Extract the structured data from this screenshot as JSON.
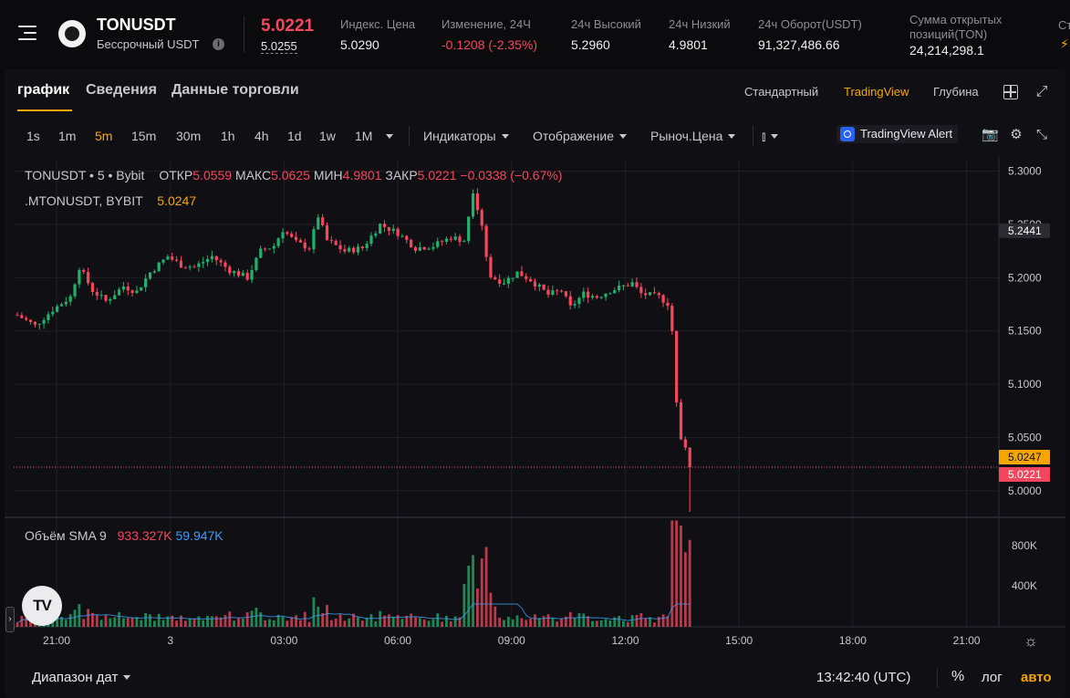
{
  "header": {
    "symbol": "TONUSDT",
    "subtitle": "Бессрочный USDT",
    "last_price": "5.0221",
    "mark_price": "5.0255",
    "stats": [
      {
        "label": "Индекс. Цена",
        "value": "5.0290",
        "negative": false
      },
      {
        "label": "Изменение, 24Ч",
        "value": "-0.1208 (-2.35%)",
        "negative": true
      },
      {
        "label": "24ч Высокий",
        "value": "5.2960",
        "negative": false
      },
      {
        "label": "24ч Низкий",
        "value": "4.9801",
        "negative": false
      },
      {
        "label": "24ч Оборот(USDT)",
        "value": "91,327,486.66",
        "negative": false
      }
    ],
    "open_interest_label_1": "Сумма открытых",
    "open_interest_label_2": "позиций(TON)",
    "open_interest_value": "24,214,298.1",
    "truncated_label": "Ст"
  },
  "tabs": [
    "график",
    "Сведения",
    "Данные торговли"
  ],
  "views": [
    "Стандартный",
    "TradingView",
    "Глубина"
  ],
  "timeframes": [
    "1s",
    "1m",
    "5m",
    "15m",
    "30m",
    "1h",
    "4h",
    "1d",
    "1w",
    "1M"
  ],
  "active_timeframe": "5m",
  "toolbar": {
    "indicators": "Индикаторы",
    "display": "Отображение",
    "price_type": "Рыноч.Цена",
    "alert": "TradingView Alert"
  },
  "legend": {
    "symbol": "TONUSDT • 5 • Bybit",
    "open_lbl": "ОТКР",
    "open": "5.0559",
    "high_lbl": "МАКС",
    "high": "5.0625",
    "low_lbl": "МИН",
    "low": "4.9801",
    "close_lbl": "ЗАКР",
    "close": "5.0221",
    "change": "−0.0338 (−0.67%)",
    "mark_symbol": ".MTONUSDT, BYBIT",
    "mark_value": "5.0247",
    "volume_lbl": "Объём SMA 9",
    "volume_1": "933.327K",
    "volume_2": "59.947K"
  },
  "chart_data": {
    "type": "candlestick",
    "y_ticks": [
      "5.3000",
      "5.2500",
      "5.2000",
      "5.1500",
      "5.1000",
      "5.0500",
      "5.0000"
    ],
    "volume_ticks": [
      "800K",
      "400K"
    ],
    "x_ticks": [
      "21:00",
      "3",
      "03:00",
      "06:00",
      "09:00",
      "12:00",
      "15:00",
      "18:00",
      "21:00"
    ],
    "price_labels": [
      {
        "value": "5.2441",
        "color": "#2b2b31"
      },
      {
        "value": "5.0247",
        "color": "#f7a600"
      },
      {
        "value": "5.0221",
        "color": "#f6465d"
      }
    ],
    "ylim": [
      4.975,
      5.31
    ],
    "path": [
      [
        0,
        5.165
      ],
      [
        4,
        5.155
      ],
      [
        8,
        5.17
      ],
      [
        12,
        5.182
      ],
      [
        14,
        5.21
      ],
      [
        17,
        5.188
      ],
      [
        20,
        5.178
      ],
      [
        24,
        5.192
      ],
      [
        27,
        5.187
      ],
      [
        30,
        5.205
      ],
      [
        34,
        5.22
      ],
      [
        37,
        5.212
      ],
      [
        40,
        5.21
      ],
      [
        44,
        5.22
      ],
      [
        48,
        5.207
      ],
      [
        52,
        5.2
      ],
      [
        55,
        5.225
      ],
      [
        58,
        5.23
      ],
      [
        60,
        5.245
      ],
      [
        63,
        5.233
      ],
      [
        66,
        5.228
      ],
      [
        68,
        5.258
      ],
      [
        70,
        5.235
      ],
      [
        74,
        5.225
      ],
      [
        78,
        5.228
      ],
      [
        82,
        5.25
      ],
      [
        86,
        5.242
      ],
      [
        90,
        5.228
      ],
      [
        94,
        5.23
      ],
      [
        98,
        5.238
      ],
      [
        101,
        5.235
      ],
      [
        103,
        5.282
      ],
      [
        105,
        5.25
      ],
      [
        106,
        5.22
      ],
      [
        107,
        5.2
      ],
      [
        110,
        5.196
      ],
      [
        113,
        5.205
      ],
      [
        116,
        5.198
      ],
      [
        120,
        5.184
      ],
      [
        123,
        5.188
      ],
      [
        125,
        5.172
      ],
      [
        128,
        5.185
      ],
      [
        131,
        5.182
      ],
      [
        134,
        5.188
      ],
      [
        137,
        5.192
      ],
      [
        139,
        5.195
      ],
      [
        141,
        5.185
      ],
      [
        145,
        5.182
      ],
      [
        147,
        5.176
      ],
      [
        148,
        5.15
      ],
      [
        149,
        5.085
      ],
      [
        150,
        5.05
      ],
      [
        151,
        5.038
      ],
      [
        152,
        5.022
      ]
    ]
  }
}
